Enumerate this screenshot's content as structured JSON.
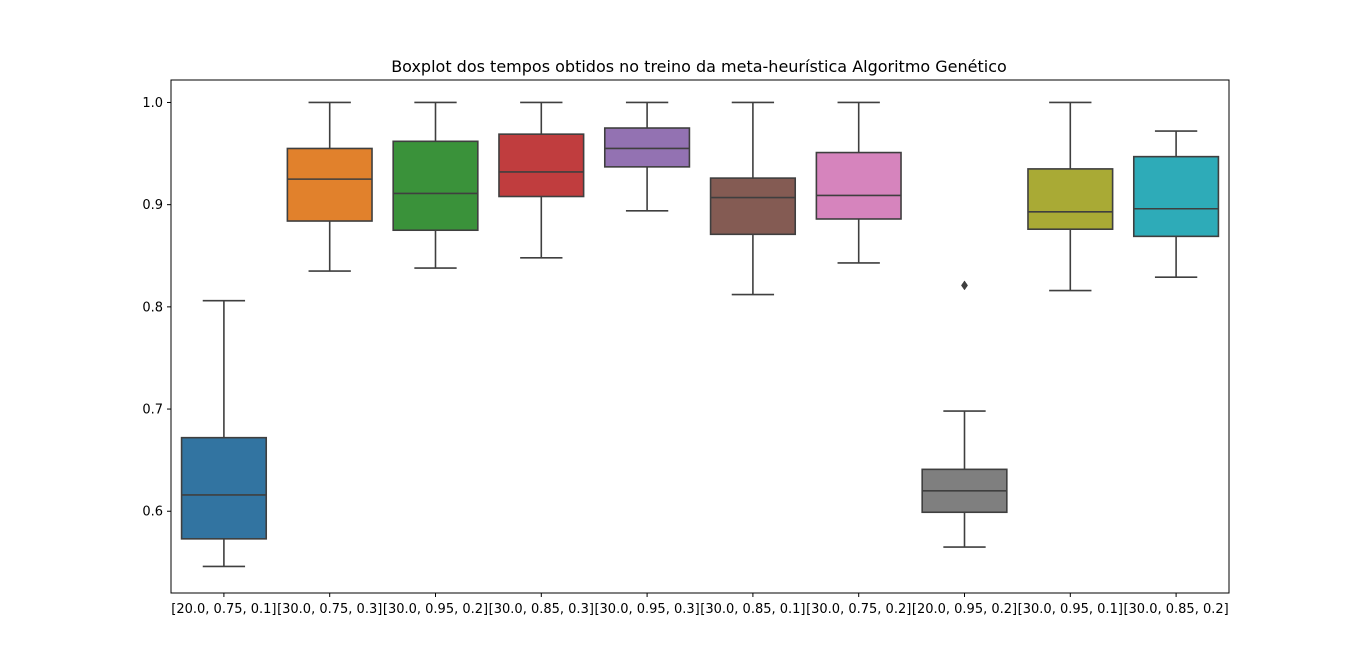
{
  "chart_data": {
    "type": "boxplot",
    "title": "Boxplot dos tempos obtidos no treino da meta-heurística Algoritmo Genético",
    "xlabel": "",
    "ylabel": "",
    "ylim": [
      0.52,
      1.022
    ],
    "yticks": [
      "0.6",
      "0.7",
      "0.8",
      "0.9",
      "1.0"
    ],
    "ytick_values": [
      0.6,
      0.7,
      0.8,
      0.9,
      1.0
    ],
    "grid": false,
    "categories": [
      "[20.0, 0.75, 0.1]",
      "[30.0, 0.75, 0.3]",
      "[30.0, 0.95, 0.2]",
      "[30.0, 0.85, 0.3]",
      "[30.0, 0.95, 0.3]",
      "[30.0, 0.85, 0.1]",
      "[30.0, 0.75, 0.2]",
      "[20.0, 0.95, 0.2]",
      "[30.0, 0.95, 0.1]",
      "[30.0, 0.85, 0.2]"
    ],
    "boxes": [
      {
        "whisker_low": 0.546,
        "q1": 0.573,
        "median": 0.616,
        "q3": 0.672,
        "whisker_high": 0.806,
        "outliers": [],
        "color": "#3274a1"
      },
      {
        "whisker_low": 0.835,
        "q1": 0.884,
        "median": 0.925,
        "q3": 0.955,
        "whisker_high": 1.0,
        "outliers": [],
        "color": "#e1812c"
      },
      {
        "whisker_low": 0.838,
        "q1": 0.875,
        "median": 0.911,
        "q3": 0.962,
        "whisker_high": 1.0,
        "outliers": [],
        "color": "#3a923a"
      },
      {
        "whisker_low": 0.848,
        "q1": 0.908,
        "median": 0.932,
        "q3": 0.969,
        "whisker_high": 1.0,
        "outliers": [],
        "color": "#c03d3e"
      },
      {
        "whisker_low": 0.894,
        "q1": 0.937,
        "median": 0.955,
        "q3": 0.975,
        "whisker_high": 1.0,
        "outliers": [],
        "color": "#9372b2"
      },
      {
        "whisker_low": 0.812,
        "q1": 0.871,
        "median": 0.907,
        "q3": 0.926,
        "whisker_high": 1.0,
        "outliers": [],
        "color": "#845b53"
      },
      {
        "whisker_low": 0.843,
        "q1": 0.886,
        "median": 0.909,
        "q3": 0.951,
        "whisker_high": 1.0,
        "outliers": [],
        "color": "#d684bd"
      },
      {
        "whisker_low": 0.565,
        "q1": 0.599,
        "median": 0.62,
        "q3": 0.641,
        "whisker_high": 0.698,
        "outliers": [
          0.821
        ],
        "color": "#7f7f7f"
      },
      {
        "whisker_low": 0.816,
        "q1": 0.876,
        "median": 0.893,
        "q3": 0.935,
        "whisker_high": 1.0,
        "outliers": [],
        "color": "#a9aa35"
      },
      {
        "whisker_low": 0.829,
        "q1": 0.869,
        "median": 0.896,
        "q3": 0.947,
        "whisker_high": 0.972,
        "outliers": [],
        "color": "#2eabb8"
      }
    ],
    "line_color": "#3f3f3f"
  }
}
